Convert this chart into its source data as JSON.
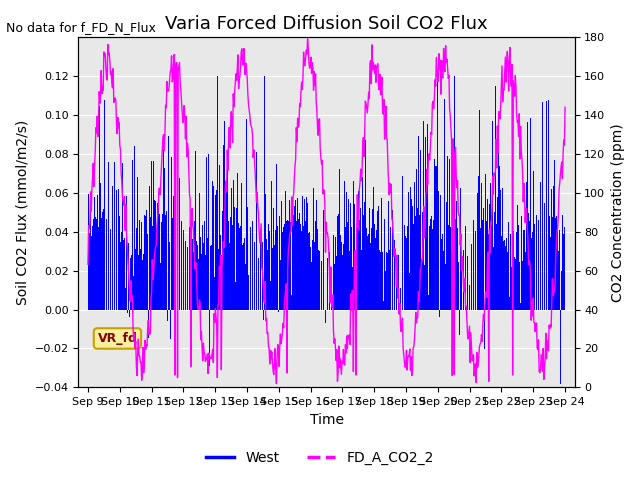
{
  "title": "Varia Forced Diffusion Soil CO2 Flux",
  "no_data_text": "No data for f_FD_N_Flux",
  "ylabel_left": "Soil CO2 Flux (mmol/m2/s)",
  "ylabel_right": "CO2 Concentration (ppm)",
  "xlabel": "Time",
  "ylim_left": [
    -0.04,
    0.14
  ],
  "ylim_right": [
    0,
    180
  ],
  "n_days": 15,
  "x_tick_labels": [
    "Sep 9",
    "Sep 10",
    "Sep 11",
    "Sep 12",
    "Sep 13",
    "Sep 14",
    "Sep 15",
    "Sep 16",
    "Sep 17",
    "Sep 18",
    "Sep 19",
    "Sep 20",
    "Sep 21",
    "Sep 22",
    "Sep 23",
    "Sep 24"
  ],
  "legend_labels": [
    "West",
    "FD_A_CO2_2"
  ],
  "legend_colors": [
    "blue",
    "magenta"
  ],
  "bar_color": "blue",
  "line_color": "magenta",
  "annotation_text": "VR_fd",
  "annotation_color": "darkred",
  "annotation_bg": "#f5f0a0",
  "annotation_border": "#c8a000",
  "background_color": "#e8e8e8",
  "title_fontsize": 13,
  "label_fontsize": 10,
  "tick_fontsize": 8,
  "yticks_left": [
    -0.04,
    -0.02,
    0.0,
    0.02,
    0.04,
    0.06,
    0.08,
    0.1,
    0.12
  ],
  "yticks_right": [
    0,
    20,
    40,
    60,
    80,
    100,
    120,
    140,
    160,
    180
  ]
}
